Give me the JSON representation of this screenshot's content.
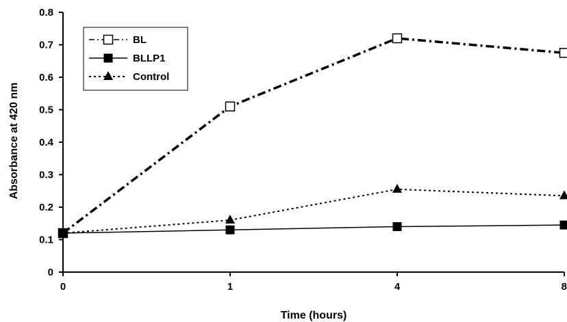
{
  "chart_data": {
    "type": "line",
    "title": "",
    "xlabel": "Time (hours)",
    "ylabel": "Absorbance at 420 nm",
    "categories": [
      "0",
      "1",
      "4",
      "8"
    ],
    "ylim": [
      0,
      0.8
    ],
    "yticks": [
      "0",
      "0.1",
      "0.2",
      "0.3",
      "0.4",
      "0.5",
      "0.6",
      "0.7",
      "0.8"
    ],
    "grid": false,
    "legend_position": "top-left",
    "series": [
      {
        "name": "BL",
        "values": [
          0.12,
          0.51,
          0.72,
          0.675
        ],
        "marker": "open-square",
        "line_style": "dash-dot",
        "color": "#000000"
      },
      {
        "name": "BLLP1",
        "values": [
          0.12,
          0.13,
          0.14,
          0.145
        ],
        "marker": "filled-square",
        "line_style": "solid",
        "color": "#000000"
      },
      {
        "name": "Control",
        "values": [
          0.12,
          0.16,
          0.255,
          0.235
        ],
        "marker": "filled-triangle",
        "line_style": "dotted",
        "color": "#000000"
      }
    ]
  }
}
